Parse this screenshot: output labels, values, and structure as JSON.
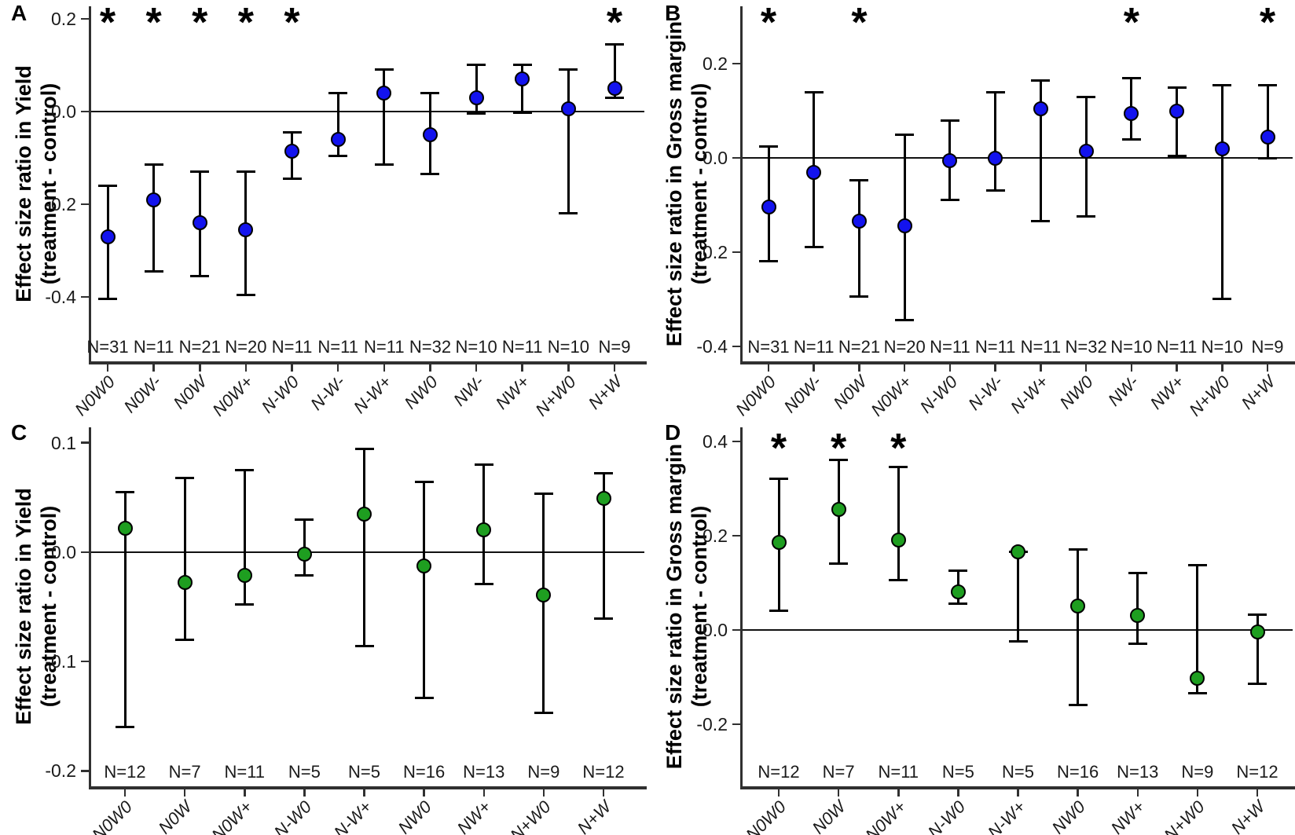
{
  "figure_background": "#ffffff",
  "significance_marker": "*",
  "chart_data": [
    {
      "type": "scatter",
      "panel": "A",
      "ylabel": [
        "Effect size ratio in Yield",
        "(treatment - control)"
      ],
      "marker_color": "#1313ee",
      "ytick_labels": [
        "0.2",
        "0.0",
        "-0.2",
        "-0.4"
      ],
      "ytick_values": [
        0.2,
        0.0,
        -0.2,
        -0.4
      ],
      "ylim": [
        -0.539,
        0.227
      ],
      "zero_line": 0.0,
      "legend": "none",
      "grid": false,
      "categories": [
        "N0W0",
        "N0W-",
        "N0W",
        "N0W+",
        "N-W0",
        "N-W-",
        "N-W+",
        "NW0",
        "NW-",
        "NW+",
        "N+W0",
        "N+W"
      ],
      "n_labels": [
        "N=31",
        "N=11",
        "N=21",
        "N=20",
        "N=11",
        "N=11",
        "N=11",
        "N=32",
        "N=10",
        "N=11",
        "N=10",
        "N=9"
      ],
      "values": [
        -0.27,
        -0.19,
        -0.24,
        -0.255,
        -0.085,
        -0.06,
        0.04,
        -0.05,
        0.03,
        0.07,
        0.005,
        0.05
      ],
      "ci_lower": [
        -0.405,
        -0.345,
        -0.355,
        -0.395,
        -0.145,
        -0.095,
        -0.115,
        -0.135,
        -0.005,
        -0.002,
        -0.22,
        0.03
      ],
      "ci_upper": [
        -0.16,
        -0.115,
        -0.13,
        -0.13,
        -0.045,
        0.04,
        0.09,
        0.04,
        0.1,
        0.1,
        0.09,
        0.145
      ],
      "significant": [
        true,
        true,
        true,
        true,
        true,
        false,
        false,
        false,
        false,
        false,
        false,
        true
      ]
    },
    {
      "type": "scatter",
      "panel": "B",
      "ylabel": [
        "Effect size ratio in Gross margin",
        "(treatment - control)"
      ],
      "marker_color": "#1313ee",
      "ytick_labels": [
        "0.2",
        "0.0",
        "-0.2",
        "-0.4"
      ],
      "ytick_values": [
        0.2,
        0.0,
        -0.2,
        -0.4
      ],
      "ylim": [
        -0.432,
        0.322
      ],
      "zero_line": 0.0,
      "legend": "none",
      "grid": false,
      "categories": [
        "N0W0",
        "N0W-",
        "N0W",
        "N0W+",
        "N-W0",
        "N-W-",
        "N-W+",
        "NW0",
        "NW-",
        "NW+",
        "N+W0",
        "N+W"
      ],
      "n_labels": [
        "N=31",
        "N=11",
        "N=21",
        "N=20",
        "N=11",
        "N=11",
        "N=11",
        "N=32",
        "N=10",
        "N=11",
        "N=10",
        "N=9"
      ],
      "values": [
        -0.105,
        -0.03,
        -0.135,
        -0.145,
        -0.005,
        0.0,
        0.105,
        0.015,
        0.095,
        0.1,
        0.02,
        0.045
      ],
      "ci_lower": [
        -0.22,
        -0.19,
        -0.295,
        -0.345,
        -0.09,
        -0.07,
        -0.135,
        -0.125,
        0.04,
        0.005,
        -0.3,
        0.0
      ],
      "ci_upper": [
        0.025,
        0.14,
        -0.048,
        0.05,
        0.08,
        0.14,
        0.165,
        0.13,
        0.17,
        0.15,
        0.155,
        0.155
      ],
      "significant": [
        true,
        false,
        true,
        false,
        false,
        false,
        false,
        false,
        true,
        false,
        false,
        true
      ]
    },
    {
      "type": "scatter",
      "panel": "C",
      "ylabel": [
        "Effect size ratio in Yield",
        "(treatment - control)"
      ],
      "marker_color": "#1e9e20",
      "ytick_labels": [
        "0.1",
        "0.0",
        "-0.1",
        "-0.2"
      ],
      "ytick_values": [
        0.1,
        0.0,
        -0.1,
        -0.2
      ],
      "ylim": [
        -0.214,
        0.114
      ],
      "zero_line": 0.0,
      "legend": "none",
      "grid": false,
      "categories": [
        "N0W0",
        "N0W",
        "N0W+",
        "N-W0",
        "N-W+",
        "NW0",
        "NW+",
        "N+W0",
        "N+W"
      ],
      "n_labels": [
        "N=12",
        "N=7",
        "N=11",
        "N=5",
        "N=5",
        "N=16",
        "N=13",
        "N=9",
        "N=12"
      ],
      "values": [
        0.022,
        -0.028,
        -0.021,
        -0.002,
        0.035,
        -0.013,
        0.02,
        -0.039,
        0.049
      ],
      "ci_lower": [
        -0.16,
        -0.08,
        -0.048,
        -0.021,
        -0.086,
        -0.133,
        -0.029,
        -0.147,
        -0.061
      ],
      "ci_upper": [
        0.055,
        0.068,
        0.075,
        0.03,
        0.094,
        0.064,
        0.08,
        0.053,
        0.072
      ],
      "significant": [
        false,
        false,
        false,
        false,
        false,
        false,
        false,
        false,
        false
      ]
    },
    {
      "type": "scatter",
      "panel": "D",
      "ylabel": [
        "Effect size ratio in Gross margin",
        "(treatment - control)"
      ],
      "marker_color": "#1e9e20",
      "ytick_labels": [
        "0.4",
        "0.2",
        "0.0",
        "-0.2"
      ],
      "ytick_values": [
        0.4,
        0.2,
        0.0,
        -0.2
      ],
      "ylim": [
        -0.332,
        0.43
      ],
      "zero_line": 0.0,
      "legend": "none",
      "grid": false,
      "categories": [
        "N0W0",
        "N0W",
        "N0W+",
        "N-W0",
        "N-W+",
        "NW0",
        "NW+",
        "N+W0",
        "N+W"
      ],
      "n_labels": [
        "N=12",
        "N=7",
        "N=11",
        "N=5",
        "N=5",
        "N=16",
        "N=13",
        "N=9",
        "N=12"
      ],
      "values": [
        0.185,
        0.255,
        0.19,
        0.08,
        0.165,
        0.05,
        0.03,
        -0.103,
        -0.005
      ],
      "ci_lower": [
        0.04,
        0.14,
        0.105,
        0.055,
        -0.025,
        -0.16,
        -0.03,
        -0.135,
        -0.115
      ],
      "ci_upper": [
        0.32,
        0.36,
        0.345,
        0.125,
        0.165,
        0.17,
        0.12,
        0.137,
        0.032
      ],
      "significant": [
        true,
        true,
        true,
        false,
        false,
        false,
        false,
        false,
        false
      ]
    }
  ]
}
